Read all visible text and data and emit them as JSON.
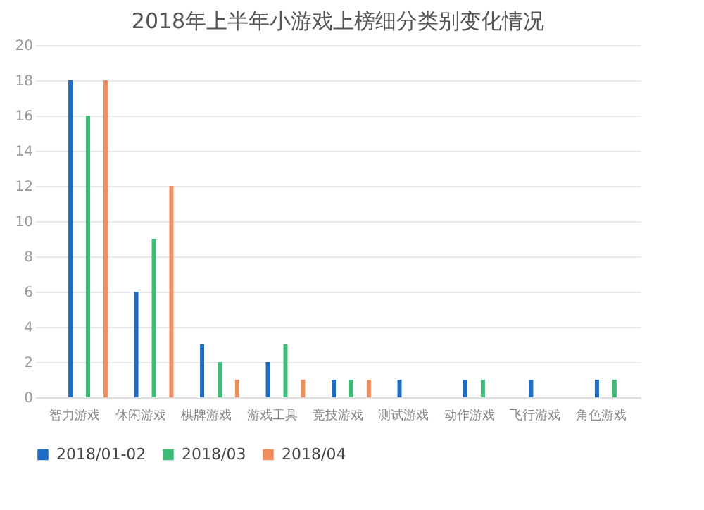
{
  "chart_data": {
    "type": "bar",
    "title": "2018年上半年小游戏上榜细分类别变化情况",
    "categories": [
      "智力游戏",
      "休闲游戏",
      "棋牌游戏",
      "游戏工具",
      "竞技游戏",
      "测试游戏",
      "动作游戏",
      "飞行游戏",
      "角色游戏"
    ],
    "series": [
      {
        "name": "2018/01-02",
        "color": "#1f6cc4",
        "values": [
          18,
          6,
          3,
          2,
          1,
          1,
          1,
          1,
          1
        ]
      },
      {
        "name": "2018/03",
        "color": "#3dbb78",
        "values": [
          16,
          9,
          2,
          3,
          1,
          null,
          1,
          null,
          1
        ]
      },
      {
        "name": "2018/04",
        "color": "#f08c5e",
        "values": [
          18,
          12,
          1,
          1,
          1,
          null,
          null,
          null,
          null
        ]
      }
    ],
    "ylim": [
      0,
      20
    ],
    "yticks": [
      0,
      2,
      4,
      6,
      8,
      10,
      12,
      14,
      16,
      18,
      20
    ],
    "grid": "y",
    "legend": "bottom"
  }
}
